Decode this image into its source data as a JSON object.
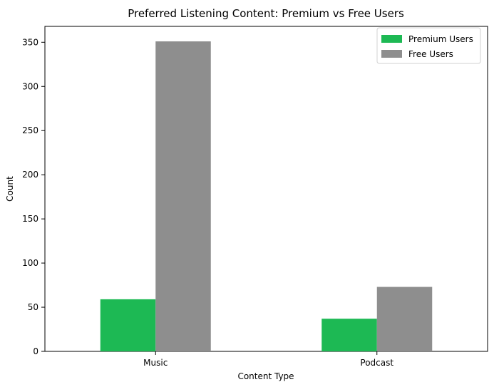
{
  "chart_data": {
    "type": "bar",
    "title": "Preferred Listening Content: Premium vs Free Users",
    "xlabel": "Content Type",
    "ylabel": "Count",
    "categories": [
      "Music",
      "Podcast"
    ],
    "series": [
      {
        "name": "Premium Users",
        "color": "#1db954",
        "values": [
          59,
          37
        ]
      },
      {
        "name": "Free Users",
        "color": "#8e8e8e",
        "values": [
          351,
          73
        ]
      }
    ],
    "ylim": [
      0,
      368
    ],
    "yticks": [
      0,
      50,
      100,
      150,
      200,
      250,
      300,
      350
    ],
    "grid": false,
    "legend_position": "top-right"
  }
}
